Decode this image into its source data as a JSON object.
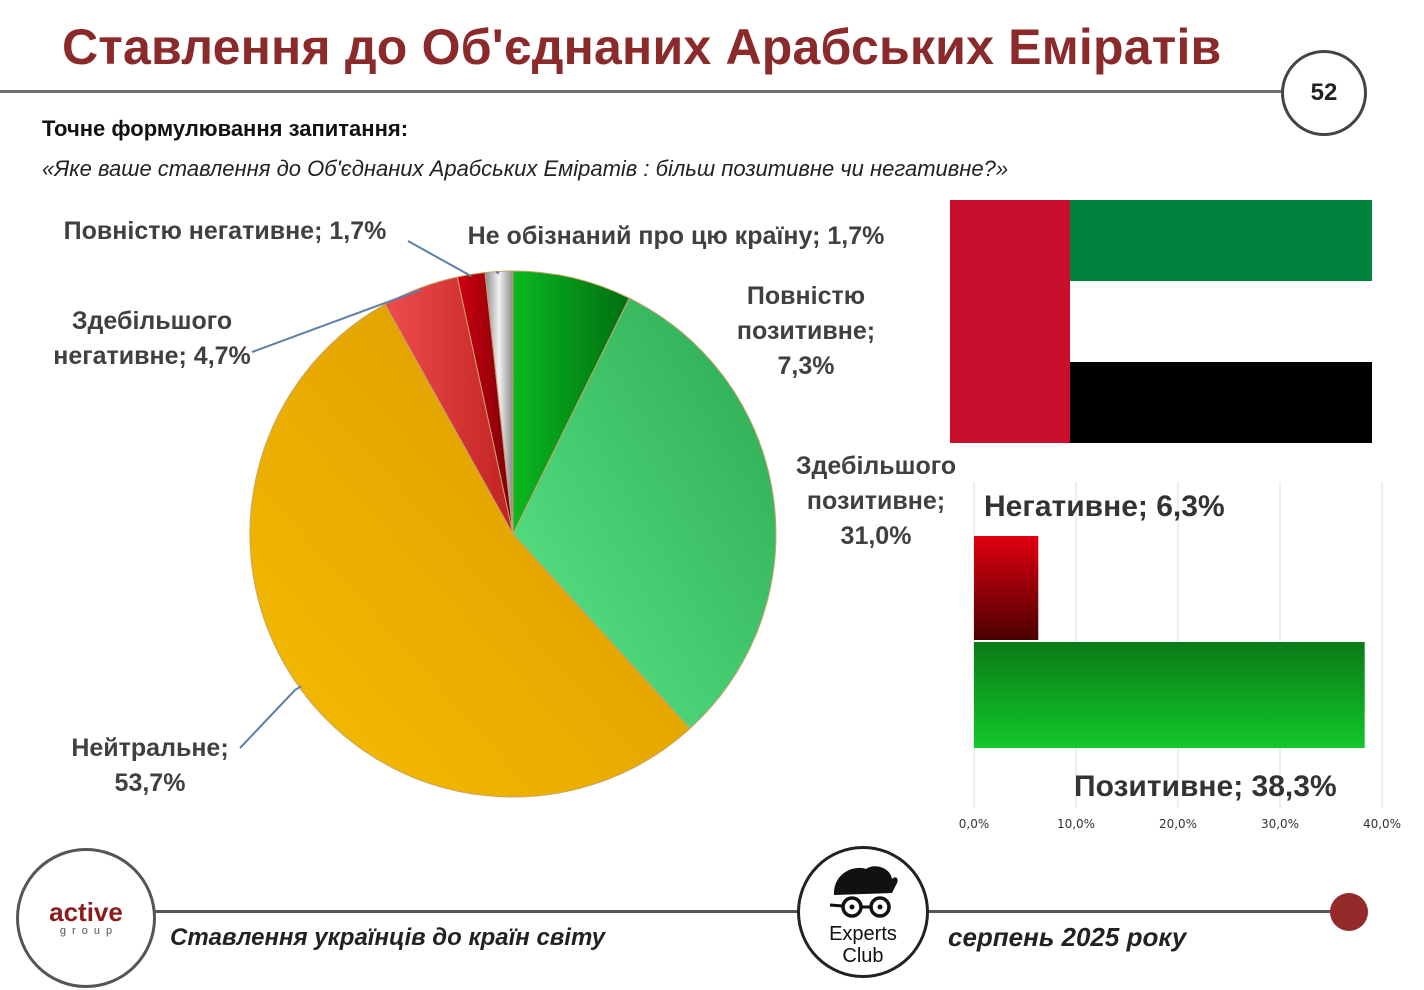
{
  "title": "Ставлення до Об'єднаних Арабських Еміратів",
  "page_number": "52",
  "question_heading": "Точне формулювання запитання:",
  "question_text": "«Яке ваше ставлення до Об'єднаних Арабських Еміратів : більш позитивне чи негативне?»",
  "footer": {
    "left_text": "Ставлення українців до країн світу",
    "right_text": "серпень 2025 року",
    "logo_left_word": "active",
    "logo_left_sub": "group",
    "logo_right_line1": "Experts",
    "logo_right_line2": "Club"
  },
  "colors": {
    "title": "#8b2a2a",
    "dark_green": "#0a8a1a",
    "light_green": "#3cc86a",
    "neutral": "#e8a800",
    "light_red": "#e03c3c",
    "dark_red": "#a00010",
    "grey": "#b0b0b0",
    "flag_red": "#c8102e",
    "flag_green": "#00843d",
    "flag_black": "#000000"
  },
  "flag": "uae-flag",
  "chart_data": [
    {
      "type": "pie",
      "categories": [
        "Повністю позитивне",
        "Здебільшого позитивне",
        "Нейтральне",
        "Здебільшого негативне",
        "Повністю негативне",
        "Не обізнаний про цю країну"
      ],
      "values": [
        7.3,
        31.0,
        53.7,
        4.7,
        1.7,
        1.7
      ],
      "labels": [
        [
          "Повністю",
          "позитивне;",
          "7,3%"
        ],
        [
          "Здебільшого",
          "позитивне;",
          "31,0%"
        ],
        [
          "Нейтральне;",
          "53,7%"
        ],
        [
          "Здебільшого",
          "негативне; 4,7%"
        ],
        [
          "Повністю негативне; 1,7%"
        ],
        [
          "Не обізнаний про цю країну; 1,7%"
        ]
      ],
      "colors": [
        "#0a8a1a",
        "#3cc86a",
        "#e8a800",
        "#e03c3c",
        "#a00010",
        "#b0b0b0"
      ]
    },
    {
      "type": "bar",
      "orientation": "horizontal",
      "categories": [
        "Негативне",
        "Позитивне"
      ],
      "values": [
        6.3,
        38.3
      ],
      "labels": [
        "Негативне; 6,3%",
        "Позитивне; 38,3%"
      ],
      "xlim": [
        0,
        40
      ],
      "ticks": [
        "0,0%",
        "10,0%",
        "20,0%",
        "30,0%",
        "40,0%"
      ],
      "grid": true
    }
  ]
}
